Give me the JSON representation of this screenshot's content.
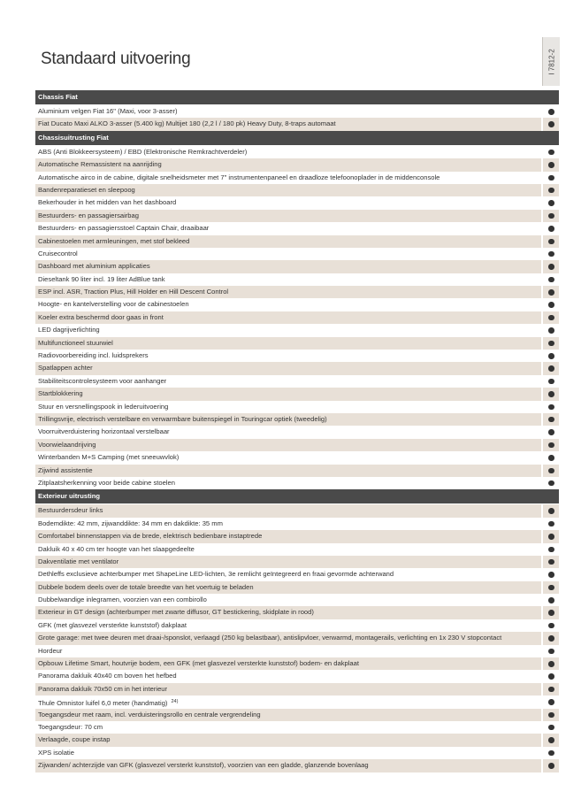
{
  "header": {
    "title": "Standaard uitvoering",
    "code": "I 7812-2"
  },
  "sections": [
    {
      "title": "Chassis Fiat",
      "rows": [
        {
          "text": "Aluminium velgen Fiat 16\" (Maxi, voor 3-asser)"
        },
        {
          "text": "Fiat Ducato Maxi ALKO 3-asser (5.400 kg) Multijet 180 (2,2 l / 180 pk) Heavy Duty, 8-traps automaat"
        }
      ]
    },
    {
      "title": "Chassisuitrusting Fiat",
      "rows": [
        {
          "text": "ABS (Anti Blokkeersysteem) / EBD (Elektronische Remkrachtverdeler)"
        },
        {
          "text": "Automatische Remassistent na aanrijding"
        },
        {
          "text": "Automatische airco in de cabine, digitale snelheidsmeter met 7\" instrumentenpaneel en draadloze telefoonoplader in de middenconsole"
        },
        {
          "text": "Bandenreparatieset en sleepoog"
        },
        {
          "text": "Bekerhouder in het midden van het dashboard"
        },
        {
          "text": "Bestuurders- en passagiersairbag"
        },
        {
          "text": "Bestuurders- en passagiersstoel Captain Chair, draaibaar"
        },
        {
          "text": "Cabinestoelen met armleuningen, met stof bekleed"
        },
        {
          "text": "Cruisecontrol"
        },
        {
          "text": "Dashboard met aluminium applicaties"
        },
        {
          "text": "Dieseltank 90 liter incl. 19 liter AdBlue tank"
        },
        {
          "text": "ESP incl. ASR, Traction Plus, Hill Holder en Hill Descent Control"
        },
        {
          "text": "Hoogte- en kantelverstelling voor de cabinestoelen"
        },
        {
          "text": "Koeler extra beschermd door gaas in front"
        },
        {
          "text": "LED dagrijverlichting"
        },
        {
          "text": "Multifunctioneel stuurwiel"
        },
        {
          "text": "Radiovoorbereiding incl. luidsprekers"
        },
        {
          "text": "Spatlappen achter"
        },
        {
          "text": "Stabiliteitscontrolesysteem voor aanhanger"
        },
        {
          "text": "Startblokkering"
        },
        {
          "text": "Stuur en versnellingspook in lederuitvoering"
        },
        {
          "text": "Trillingsvrije, electrisch verstelbare en verwarmbare buitenspiegel in Touringcar optiek (tweedelig)"
        },
        {
          "text": "Voorruitverduistering horizontaal verstelbaar"
        },
        {
          "text": "Voorwielaandrijving"
        },
        {
          "text": "Winterbanden M+S Camping (met sneeuwvlok)"
        },
        {
          "text": "Zijwind assistentie"
        },
        {
          "text": "Zitplaatsherkenning voor beide cabine stoelen"
        }
      ]
    },
    {
      "title": "Exterieur uitrusting",
      "rows": [
        {
          "text": "Bestuurdersdeur links"
        },
        {
          "text": "Bodemdikte: 42 mm, zijwanddikte: 34 mm en dakdikte: 35 mm"
        },
        {
          "text": "Comfortabel binnenstappen via de brede, elektrisch bedienbare instaptrede"
        },
        {
          "text": "Dakluik 40 x 40 cm ter hoogte van het slaapgedeelte"
        },
        {
          "text": "Dakventilatie met ventilator"
        },
        {
          "text": "Dethleffs exclusieve achterbumper met ShapeLine LED-lichten, 3e remlicht geïntegreerd en fraai gevormde achterwand"
        },
        {
          "text": "Dubbele bodem deels over de totale breedte van het voertuig te beladen"
        },
        {
          "text": "Dubbelwandige inlegramen, voorzien van een combirollo"
        },
        {
          "text": "Exterieur in GT design (achterbumper met zwarte diffusor, GT bestickering, skidplate in rood)"
        },
        {
          "text": "GFK (met glasvezel versterkte kunststof) dakplaat"
        },
        {
          "text": "Grote garage: met twee deuren met draai-/sponslot, verlaagd (250 kg belastbaar), antislipvloer, verwarmd, montagerails, verlichting en 1x 230 V stopcontact"
        },
        {
          "text": "Hordeur"
        },
        {
          "text": "Opbouw Lifetime Smart, houtvrije bodem, een GFK (met glasvezel versterkte kunststof) bodem- en dakplaat"
        },
        {
          "text": "Panorama dakluik 40x40 cm boven het hefbed"
        },
        {
          "text": "Panorama dakluik 70x50 cm in het interieur"
        },
        {
          "text": "Thule Omnistor luifel 6,0 meter (handmatig)",
          "note": "24)"
        },
        {
          "text": "Toegangsdeur met raam, incl. verduisteringsrollo en centrale vergrendeling"
        },
        {
          "text": "Toegangsdeur: 70 cm"
        },
        {
          "text": "Verlaagde, coupe instap"
        },
        {
          "text": "XPS isolatie"
        },
        {
          "text": "Zijwanden/ achterzijde van GFK (glasvezel versterkt kunststof), voorzien van een gladde, glanzende bovenlaag"
        }
      ]
    }
  ]
}
